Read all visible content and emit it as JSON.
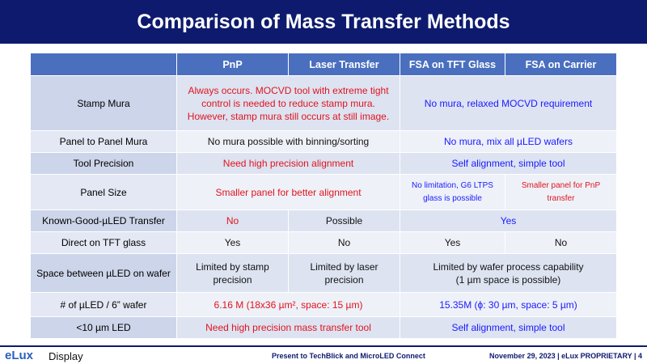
{
  "title": "Comparison of Mass Transfer Methods",
  "headers": [
    "",
    "PnP",
    "Laser Transfer",
    "FSA on TFT Glass",
    "FSA on Carrier"
  ],
  "rows": {
    "stamp_mura": {
      "label": "Stamp Mura",
      "pnp_laser": "Always occurs.  MOCVD tool with extreme tight control is needed to reduce stamp mura. However, stamp mura still occurs at still image.",
      "fsa": "No mura, relaxed MOCVD requirement"
    },
    "panel_mura": {
      "label": "Panel to Panel Mura",
      "pnp_laser": "No mura possible with binning/sorting",
      "fsa": "No mura, mix all µLED wafers"
    },
    "tool_precision": {
      "label": "Tool Precision",
      "pnp_laser": "Need high precision alignment",
      "fsa": "Self alignment, simple tool"
    },
    "panel_size": {
      "label": "Panel Size",
      "pnp_laser": "Smaller panel for better alignment",
      "fsa_tft": "No limitation,  G6 LTPS glass is possible",
      "fsa_carrier": "Smaller panel for PnP transfer"
    },
    "kgd": {
      "label": "Known-Good-µLED Transfer",
      "pnp": "No",
      "laser": "Possible",
      "fsa": "Yes"
    },
    "direct_tft": {
      "label": "Direct on TFT glass",
      "pnp": "Yes",
      "laser": "No",
      "fsa_tft": "Yes",
      "fsa_carrier": "No"
    },
    "space": {
      "label": "Space between µLED on wafer",
      "pnp": "Limited by stamp precision",
      "laser": "Limited by laser precision",
      "fsa_line1": "Limited by wafer process capability",
      "fsa_line2": "(1 µm space is possible)"
    },
    "per_wafer": {
      "label": "# of µLED / 6” wafer",
      "pnp_laser": "6.16 M (18x36 µm², space: 15 µm)",
      "fsa": "15.35M (ϕ: 30 µm, space: 5 µm)"
    },
    "small_led": {
      "label": "<10 µm LED",
      "pnp_laser": "Need high precision mass transfer tool",
      "fsa": "Self alignment, simple tool"
    }
  },
  "footer": {
    "logo": "eLux",
    "logo_suffix": "Display",
    "presented": "Present to TechBlick and MicroLED Connect",
    "meta": "November 29, 2023   |   eLux  PROPRIETARY   |   4"
  },
  "colors": {
    "title_bg": "#0d1a6e",
    "header_bg": "#4a6fbf",
    "red": "#e0141e",
    "blue": "#1a1aff"
  }
}
